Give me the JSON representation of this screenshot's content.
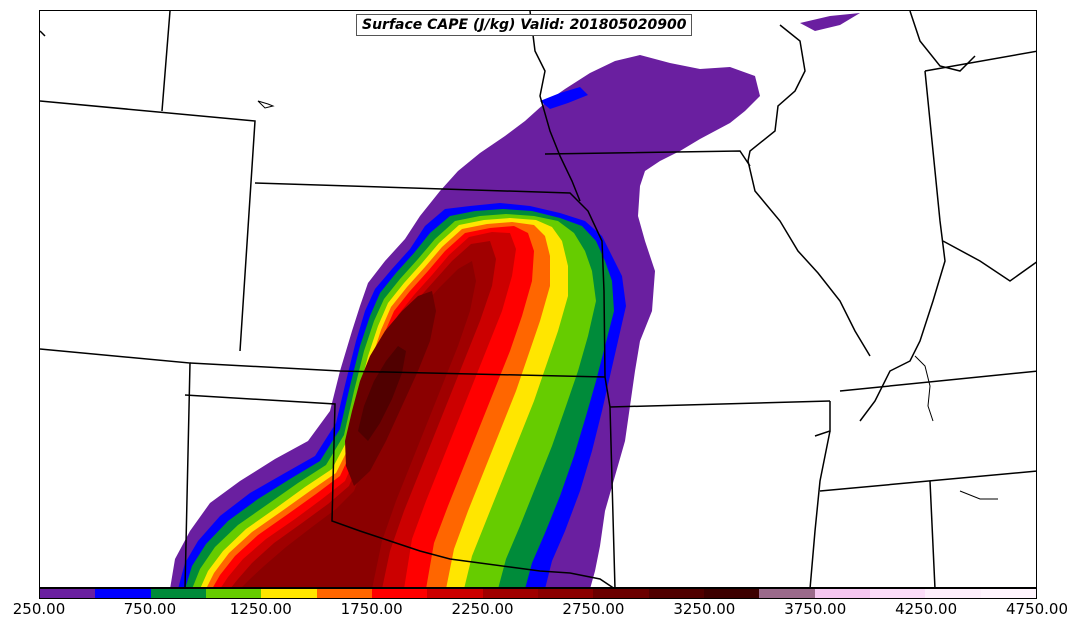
{
  "map": {
    "title": "Surface CAPE (J/kg) Valid: 201805020900",
    "field": "Surface CAPE",
    "units": "J/kg",
    "valid": "201805020900"
  },
  "colorbar": {
    "colors": [
      "#6a1fa0",
      "#0000ff",
      "#008b3a",
      "#66cc00",
      "#ffe600",
      "#ff6600",
      "#ff0000",
      "#cc0000",
      "#a00000",
      "#8b0000",
      "#6b0000",
      "#500000",
      "#3c0000",
      "#9b6a8b",
      "#f5c6f0",
      "#fbdcf8",
      "#fdeefb",
      "#fff4fd"
    ],
    "tick_labels": [
      "250.00",
      "750.00",
      "1250.00",
      "1750.00",
      "2250.00",
      "2750.00",
      "3250.00",
      "3750.00",
      "4250.00",
      "4750.00"
    ]
  }
}
